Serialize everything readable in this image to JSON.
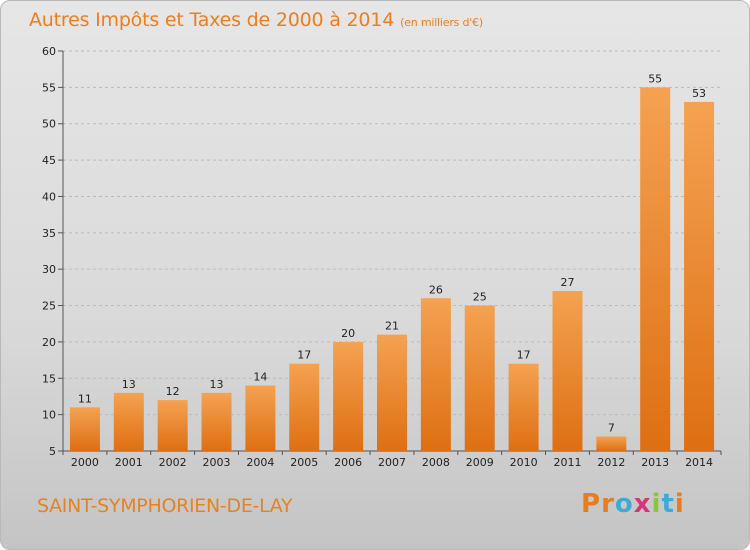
{
  "chart_data": {
    "type": "bar",
    "title": "Autres Impôts et Taxes de 2000 à 2014",
    "subtitle": "(en milliers d'€)",
    "categories": [
      "2000",
      "2001",
      "2002",
      "2003",
      "2004",
      "2005",
      "2006",
      "2007",
      "2008",
      "2009",
      "2010",
      "2011",
      "2012",
      "2013",
      "2014"
    ],
    "values": [
      11,
      13,
      12,
      13,
      14,
      17,
      20,
      21,
      26,
      25,
      17,
      27,
      7,
      55,
      53
    ],
    "ylim": [
      5,
      60
    ],
    "yticks": [
      5,
      10,
      15,
      20,
      25,
      30,
      35,
      40,
      45,
      50,
      55,
      60
    ],
    "grid": true,
    "bar_color": "#f0882a"
  },
  "footer": {
    "commune": "SAINT-SYMPHORIEN-DE-LAY",
    "logo": [
      "P",
      "r",
      "o",
      "x",
      "i",
      "t",
      "i"
    ],
    "logo_colors": [
      "#e87d1e",
      "#e87d1e",
      "#3fa9d8",
      "#d8347b",
      "#8fc23f",
      "#3fa9d8",
      "#e87d1e"
    ]
  }
}
